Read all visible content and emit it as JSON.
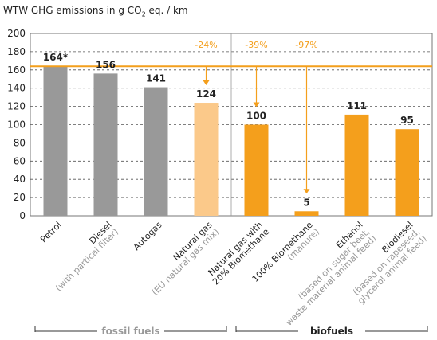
{
  "chart_data": {
    "type": "bar",
    "title_pre": "WTW GHG emissions in g CO",
    "title_sub": "2",
    "title_post": " eq. / km",
    "ylim": [
      0,
      200
    ],
    "yticks": [
      0,
      20,
      40,
      60,
      80,
      100,
      120,
      140,
      160,
      180,
      200
    ],
    "reference_value": 164,
    "categories": [
      {
        "label": "Petrol",
        "sublabel": "",
        "value": 164,
        "value_label": "164*",
        "color": "#999999",
        "group": "fossil"
      },
      {
        "label": "Diesel",
        "sublabel": "(with partical filter)",
        "value": 156,
        "value_label": "156",
        "color": "#999999",
        "group": "fossil"
      },
      {
        "label": "Autogas",
        "sublabel": "",
        "value": 141,
        "value_label": "141",
        "color": "#999999",
        "group": "fossil"
      },
      {
        "label": "Natural gas",
        "sublabel": "(EU natural gas mix)",
        "value": 124,
        "value_label": "124",
        "color": "#fbc98a",
        "group": "fossil"
      },
      {
        "label": "Natural gas with",
        "label2": "20% Biomethane",
        "sublabel": "",
        "value": 100,
        "value_label": "100",
        "color": "#f49f1c",
        "group": "bio"
      },
      {
        "label": "100% Biomethane",
        "sublabel": "(manure)",
        "value": 5,
        "value_label": "5",
        "color": "#f49f1c",
        "group": "bio"
      },
      {
        "label": "Ethanol",
        "sublabel": "(based on sugar beet,",
        "sublabel2": "waste material animal feed)",
        "value": 111,
        "value_label": "111",
        "color": "#f49f1c",
        "group": "bio"
      },
      {
        "label": "Biodiesel",
        "sublabel": "(based on rapeseed,",
        "sublabel2": "glycerol animal feed)",
        "value": 95,
        "value_label": "95",
        "color": "#f49f1c",
        "group": "bio"
      }
    ],
    "annotations": [
      {
        "text": "-24%",
        "category_index": 3
      },
      {
        "text": "-39%",
        "category_index": 4
      },
      {
        "text": "-97%",
        "category_index": 5
      }
    ],
    "groups": [
      {
        "name": "fossil fuels",
        "from": 0,
        "to": 3
      },
      {
        "name": "biofuels",
        "from": 4,
        "to": 7
      }
    ],
    "colors": {
      "accent": "#f49f1c",
      "annotation": "#f49f1c",
      "sublabel": "#999999",
      "fossil_group": "#999999",
      "bio_group": "#222222",
      "grid": "#555555"
    }
  }
}
